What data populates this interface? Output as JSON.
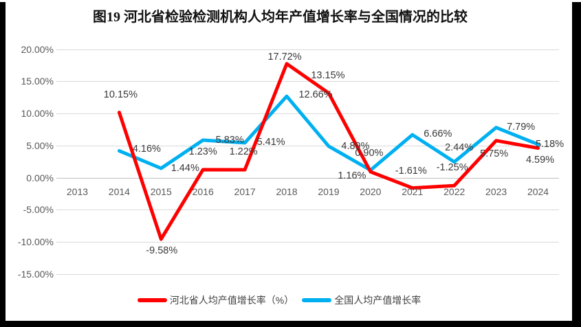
{
  "window": {
    "border_color": "#000000",
    "canvas_color": "#ffffff"
  },
  "chart_data": {
    "type": "line",
    "title": "图19  河北省检验检测机构人均年产值增长率与全国情况的比较",
    "categories": [
      "2013",
      "2014",
      "2015",
      "2016",
      "2017",
      "2018",
      "2019",
      "2020",
      "2021",
      "2022",
      "2023",
      "2024"
    ],
    "series": [
      {
        "id": "hebei",
        "name": "河北省人均产值增长率（%）",
        "color": "#FF0000",
        "values": [
          null,
          10.15,
          -9.58,
          1.23,
          1.22,
          17.72,
          13.15,
          0.9,
          -1.61,
          -1.25,
          5.75,
          4.59
        ],
        "labels": [
          "",
          "10.15%",
          "-9.58%",
          "1.23%",
          "1.22%",
          "17.72%",
          "13.15%",
          "0.90%",
          "-1.61%",
          "-1.25%",
          "5.75%",
          "4.59%"
        ]
      },
      {
        "id": "national",
        "name": "全国人均产值增长率",
        "color": "#00B0F0",
        "values": [
          null,
          4.16,
          1.44,
          5.83,
          5.41,
          12.66,
          4.89,
          1.16,
          6.66,
          2.44,
          7.79,
          5.18
        ],
        "labels": [
          "",
          "4.16%",
          "1.44%",
          "5.83%",
          "5.41%",
          "12.66%",
          "4.89%",
          "1.16%",
          "6.66%",
          "2.44%",
          "7.79%",
          "5.18%"
        ]
      }
    ],
    "y_axis": {
      "min": -15,
      "max": 20,
      "step": 5,
      "tick_labels": [
        "20.00%",
        "15.00%",
        "10.00%",
        "5.00%",
        "0.00%",
        "-5.00%",
        "-10.00%",
        "-15.00%"
      ]
    },
    "grid": true,
    "gridline_color": "#d9d9d9",
    "zero_axis_color": "#bfbfbf",
    "legend_position": "bottom"
  }
}
